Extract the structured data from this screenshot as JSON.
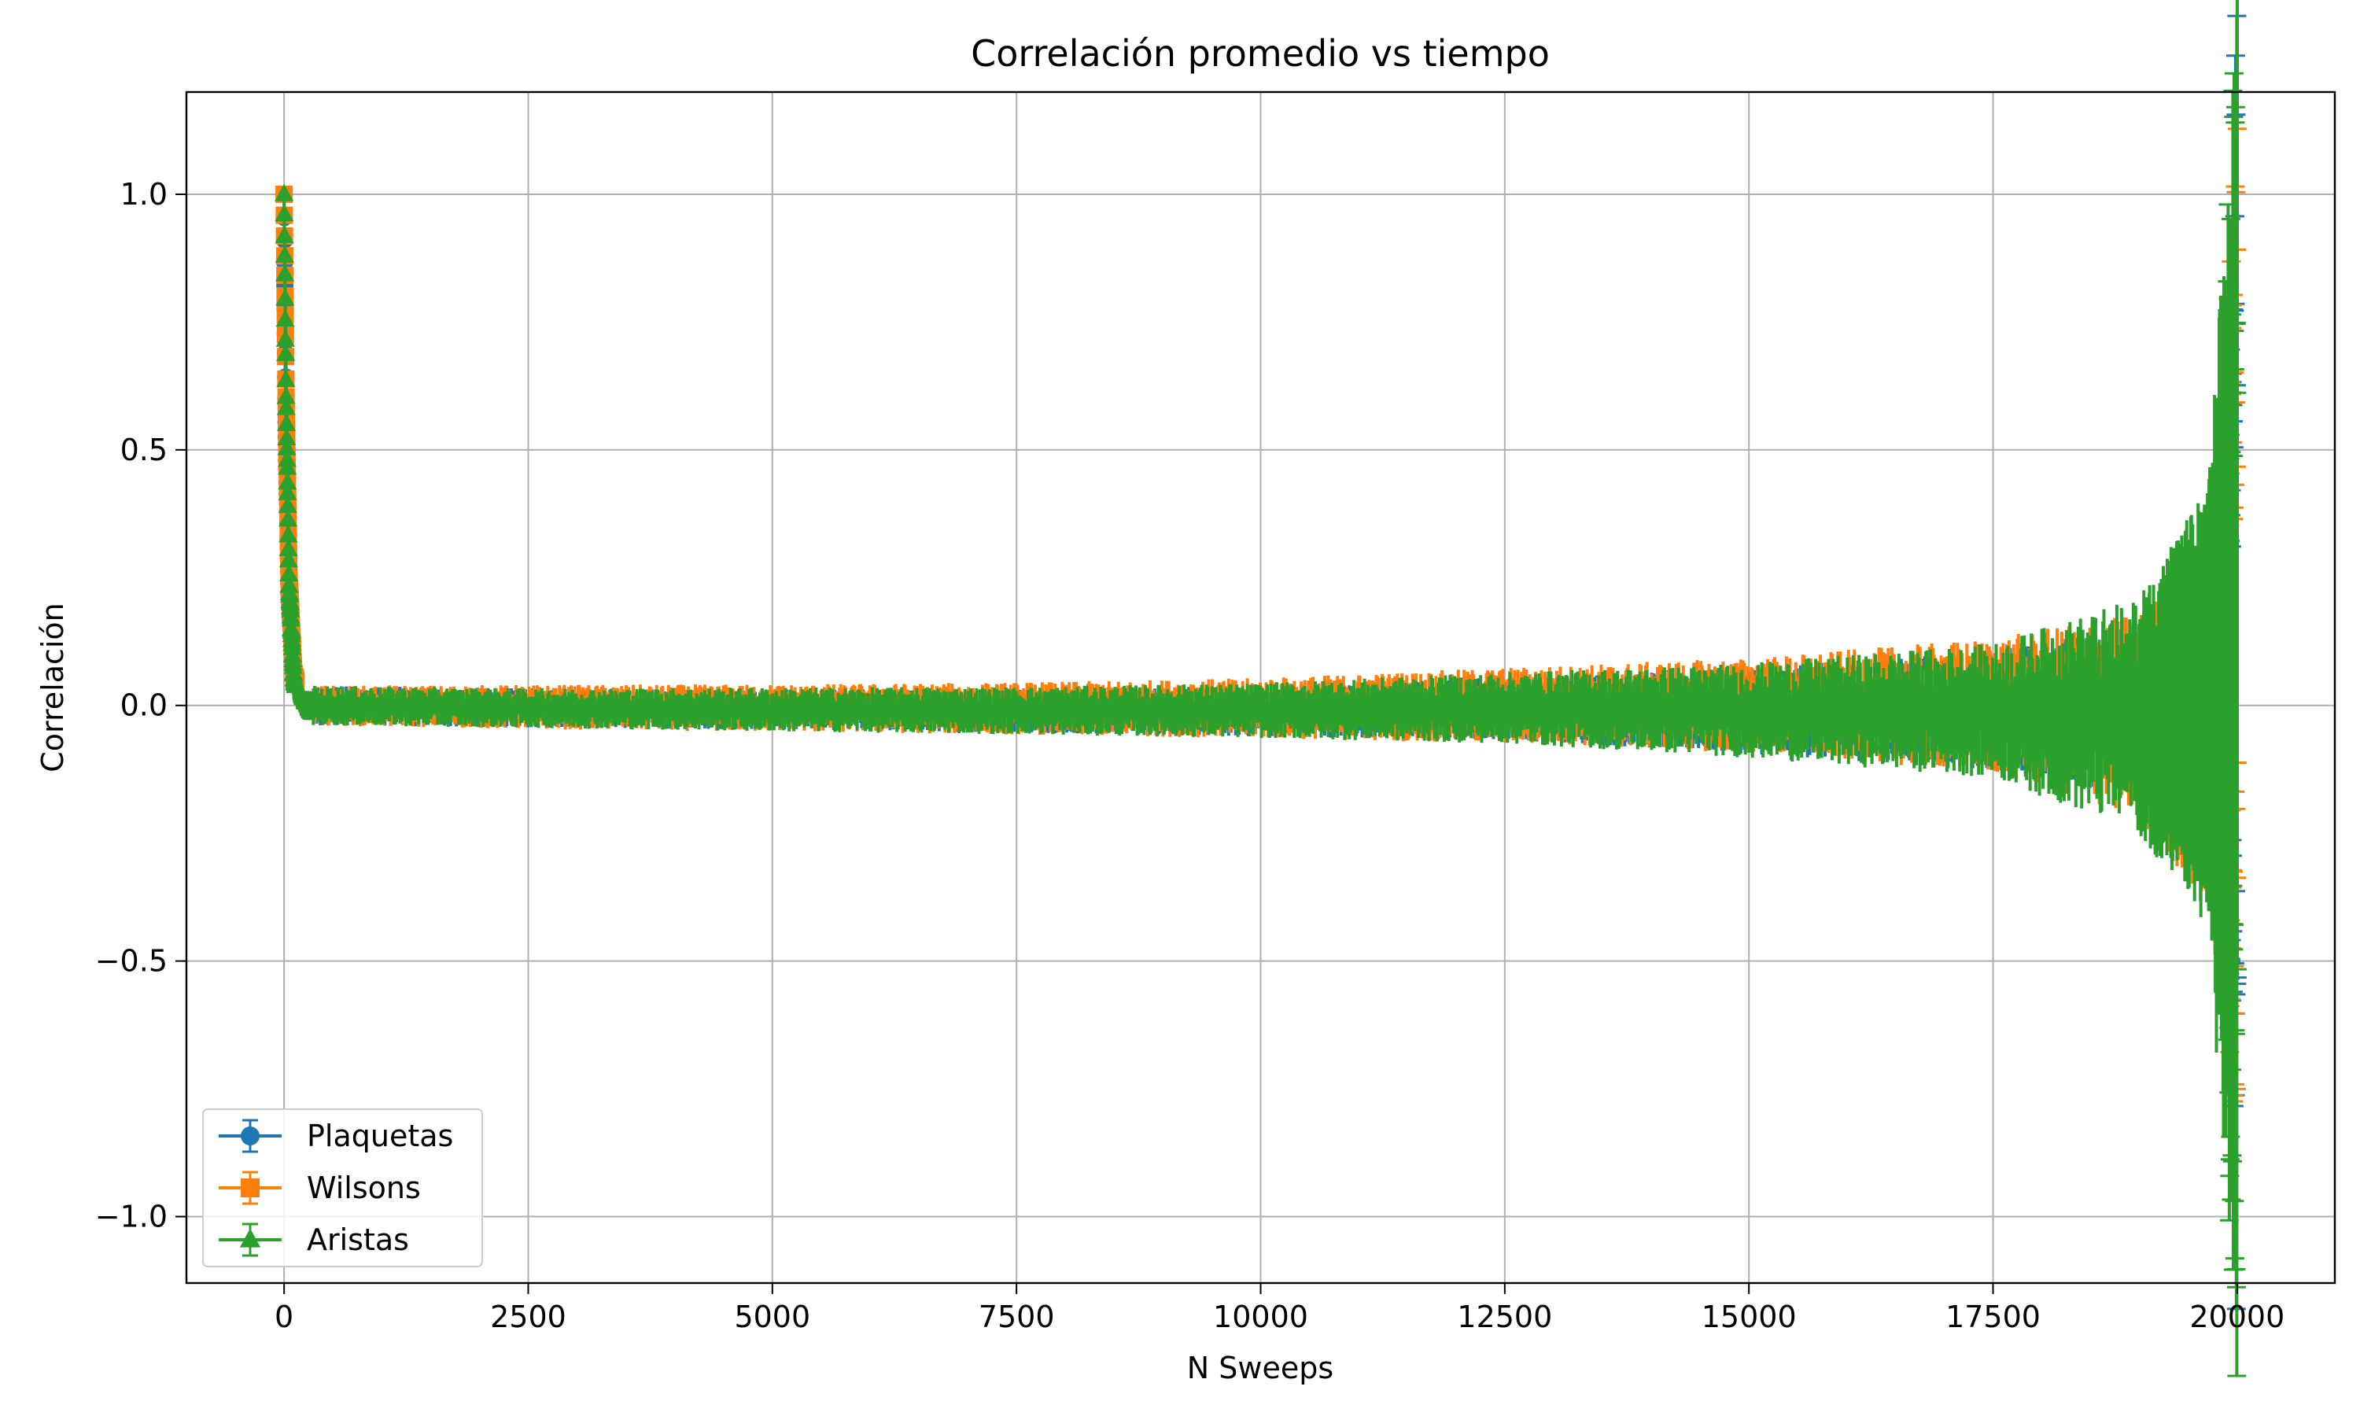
{
  "chart_data": {
    "type": "line",
    "title": "Correlación promedio vs tiempo",
    "xlabel": "N Sweeps",
    "ylabel": "Correlación",
    "xlim": [
      -1000,
      21000
    ],
    "ylim": [
      -1.13,
      1.2
    ],
    "grid": true,
    "legend_position": "bottom-left",
    "xticks": [
      0,
      2500,
      5000,
      7500,
      10000,
      12500,
      15000,
      17500,
      20000
    ],
    "xtick_labels": [
      "0",
      "2500",
      "5000",
      "7500",
      "10000",
      "12500",
      "15000",
      "17500",
      "20000"
    ],
    "yticks": [
      1.0,
      0.5,
      0.0,
      -0.5,
      -1.0
    ],
    "ytick_labels": [
      "1.0",
      "0.5",
      "0.0",
      "−0.5",
      "−1.0"
    ],
    "series": [
      {
        "name": "Plaquetas",
        "color": "#1f77b4",
        "marker": "circle",
        "points": [
          {
            "x": 0,
            "y": 1.0,
            "err": 0.0
          },
          {
            "x": 20,
            "y": 0.55,
            "err": 0.06
          },
          {
            "x": 50,
            "y": 0.22,
            "err": 0.05
          },
          {
            "x": 100,
            "y": 0.06,
            "err": 0.04
          },
          {
            "x": 200,
            "y": 0.0,
            "err": 0.025
          },
          {
            "x": 2500,
            "y": -0.005,
            "err": 0.025
          },
          {
            "x": 5000,
            "y": -0.008,
            "err": 0.025
          },
          {
            "x": 7500,
            "y": -0.01,
            "err": 0.028
          },
          {
            "x": 10000,
            "y": -0.012,
            "err": 0.032
          },
          {
            "x": 12500,
            "y": -0.005,
            "err": 0.04
          },
          {
            "x": 15000,
            "y": -0.01,
            "err": 0.055
          },
          {
            "x": 17500,
            "y": -0.01,
            "err": 0.075
          },
          {
            "x": 19000,
            "y": -0.01,
            "err": 0.11
          },
          {
            "x": 19700,
            "y": 0.0,
            "err": 0.2
          },
          {
            "x": 19950,
            "y": 0.1,
            "err": 0.45
          },
          {
            "x": 20000,
            "y": 0.1,
            "err": 0.99
          }
        ]
      },
      {
        "name": "Wilsons",
        "color": "#ff7f0e",
        "marker": "square",
        "points": [
          {
            "x": 0,
            "y": 1.0,
            "err": 0.0
          },
          {
            "x": 20,
            "y": 0.6,
            "err": 0.07
          },
          {
            "x": 50,
            "y": 0.25,
            "err": 0.06
          },
          {
            "x": 100,
            "y": 0.06,
            "err": 0.04
          },
          {
            "x": 200,
            "y": 0.0,
            "err": 0.025
          },
          {
            "x": 2500,
            "y": -0.003,
            "err": 0.028
          },
          {
            "x": 5000,
            "y": -0.005,
            "err": 0.03
          },
          {
            "x": 7500,
            "y": -0.006,
            "err": 0.033
          },
          {
            "x": 10000,
            "y": -0.005,
            "err": 0.038
          },
          {
            "x": 12500,
            "y": 0.0,
            "err": 0.048
          },
          {
            "x": 15000,
            "y": 0.0,
            "err": 0.06
          },
          {
            "x": 17500,
            "y": 0.0,
            "err": 0.085
          },
          {
            "x": 19000,
            "y": -0.02,
            "err": 0.13
          },
          {
            "x": 19700,
            "y": -0.05,
            "err": 0.22
          },
          {
            "x": 19950,
            "y": 0.05,
            "err": 0.55
          },
          {
            "x": 20000,
            "y": 0.2,
            "err": 0.62
          }
        ]
      },
      {
        "name": "Aristas",
        "color": "#2ca02c",
        "marker": "triangle",
        "points": [
          {
            "x": 0,
            "y": 1.0,
            "err": 0.0
          },
          {
            "x": 20,
            "y": 0.6,
            "err": 0.07
          },
          {
            "x": 50,
            "y": 0.24,
            "err": 0.06
          },
          {
            "x": 100,
            "y": 0.05,
            "err": 0.04
          },
          {
            "x": 200,
            "y": 0.0,
            "err": 0.025
          },
          {
            "x": 2500,
            "y": -0.005,
            "err": 0.025
          },
          {
            "x": 5000,
            "y": -0.008,
            "err": 0.028
          },
          {
            "x": 7500,
            "y": -0.01,
            "err": 0.03
          },
          {
            "x": 10000,
            "y": -0.01,
            "err": 0.035
          },
          {
            "x": 12500,
            "y": -0.005,
            "err": 0.045
          },
          {
            "x": 15000,
            "y": -0.01,
            "err": 0.06
          },
          {
            "x": 17500,
            "y": -0.01,
            "err": 0.085
          },
          {
            "x": 19000,
            "y": -0.02,
            "err": 0.15
          },
          {
            "x": 19700,
            "y": 0.0,
            "err": 0.28
          },
          {
            "x": 19950,
            "y": 0.0,
            "err": 0.75
          },
          {
            "x": 20000,
            "y": 0.05,
            "err": 0.98
          }
        ]
      }
    ]
  }
}
